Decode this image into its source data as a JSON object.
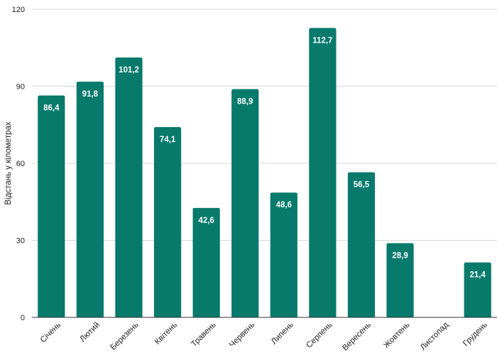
{
  "chart_data": {
    "type": "bar",
    "title": "",
    "xlabel": "",
    "ylabel": "Відстань у кілометрах",
    "ylim": [
      0,
      120
    ],
    "yticks": [
      0,
      30,
      60,
      90,
      120
    ],
    "grid": true,
    "bar_color": "#077a6c",
    "categories": [
      "Січень",
      "Лютий",
      "Березень",
      "Квітень",
      "Травень",
      "Червень",
      "Липень",
      "Серпень",
      "Вересень",
      "Жовтень",
      "Листопад",
      "Грудень"
    ],
    "values": [
      86.4,
      91.8,
      101.2,
      74.1,
      42.6,
      88.9,
      48.6,
      112.7,
      56.5,
      28.9,
      null,
      21.4
    ],
    "value_labels": [
      "86,4",
      "91,8",
      "101,2",
      "74,1",
      "42,6",
      "88,9",
      "48,6",
      "112,7",
      "56,5",
      "28,9",
      "",
      "21,4"
    ]
  }
}
